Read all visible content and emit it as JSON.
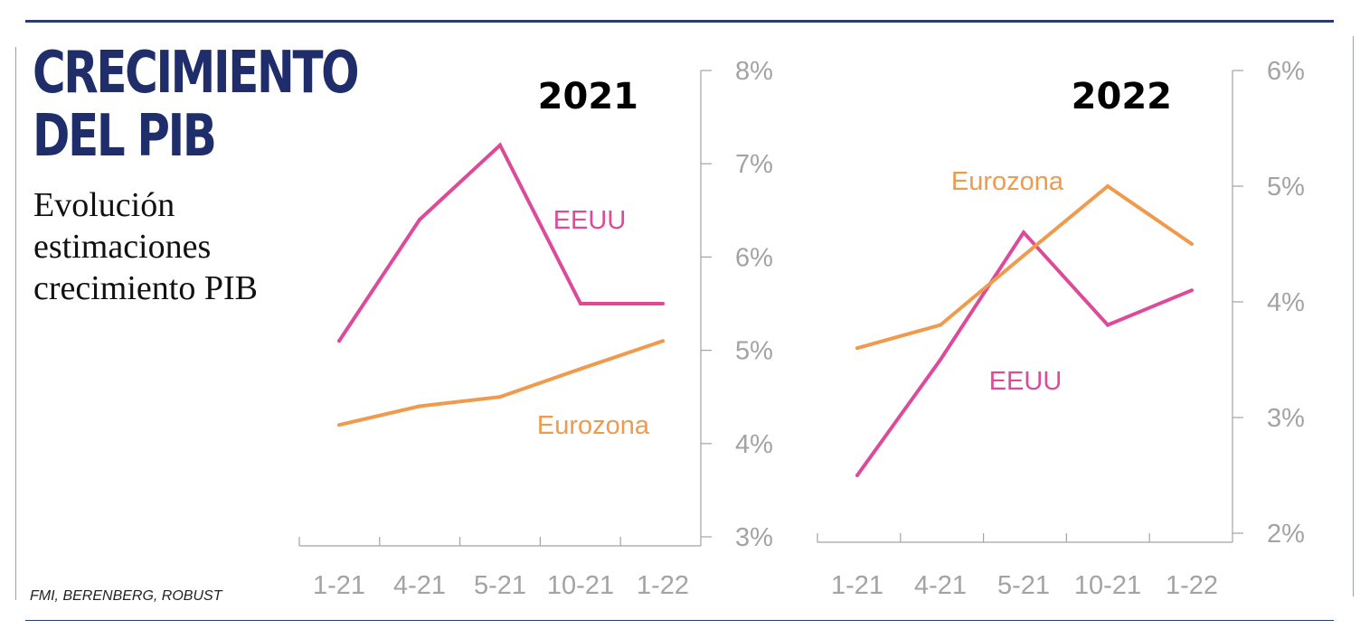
{
  "header": {
    "title_line1": "CRECIMIENTO",
    "title_line2": "DEL PIB",
    "subtitle": "Evolución estimaciones crecimiento PIB"
  },
  "source": "FMI, BERENBERG, ROBUST",
  "colors": {
    "eeuu": "#dd4a9a",
    "eurozona": "#ef9a4c",
    "axis": "#a3a3a3",
    "title": "#1f2d6b"
  },
  "chart_data": [
    {
      "type": "line",
      "title": "2021",
      "categories": [
        "1-21",
        "4-21",
        "5-21",
        "10-21",
        "1-22"
      ],
      "ylim": [
        3,
        8
      ],
      "yticks": [
        3,
        4,
        5,
        6,
        7,
        8
      ],
      "ytick_labels": [
        "3%",
        "4%",
        "5%",
        "6%",
        "7%",
        "8%"
      ],
      "series": [
        {
          "name": "EEUU",
          "values": [
            5.1,
            6.4,
            7.2,
            5.5,
            5.5
          ]
        },
        {
          "name": "Eurozona",
          "values": [
            4.2,
            4.4,
            4.5,
            4.8,
            5.1
          ]
        }
      ]
    },
    {
      "type": "line",
      "title": "2022",
      "categories": [
        "1-21",
        "4-21",
        "5-21",
        "10-21",
        "1-22"
      ],
      "ylim": [
        2,
        6
      ],
      "yticks": [
        2,
        3,
        4,
        5,
        6
      ],
      "ytick_labels": [
        "2%",
        "3%",
        "4%",
        "5%",
        "6%"
      ],
      "series": [
        {
          "name": "EEUU",
          "values": [
            2.5,
            3.5,
            4.6,
            3.8,
            4.1
          ]
        },
        {
          "name": "Eurozona",
          "values": [
            3.6,
            3.8,
            4.4,
            5.0,
            4.5
          ]
        }
      ]
    }
  ]
}
